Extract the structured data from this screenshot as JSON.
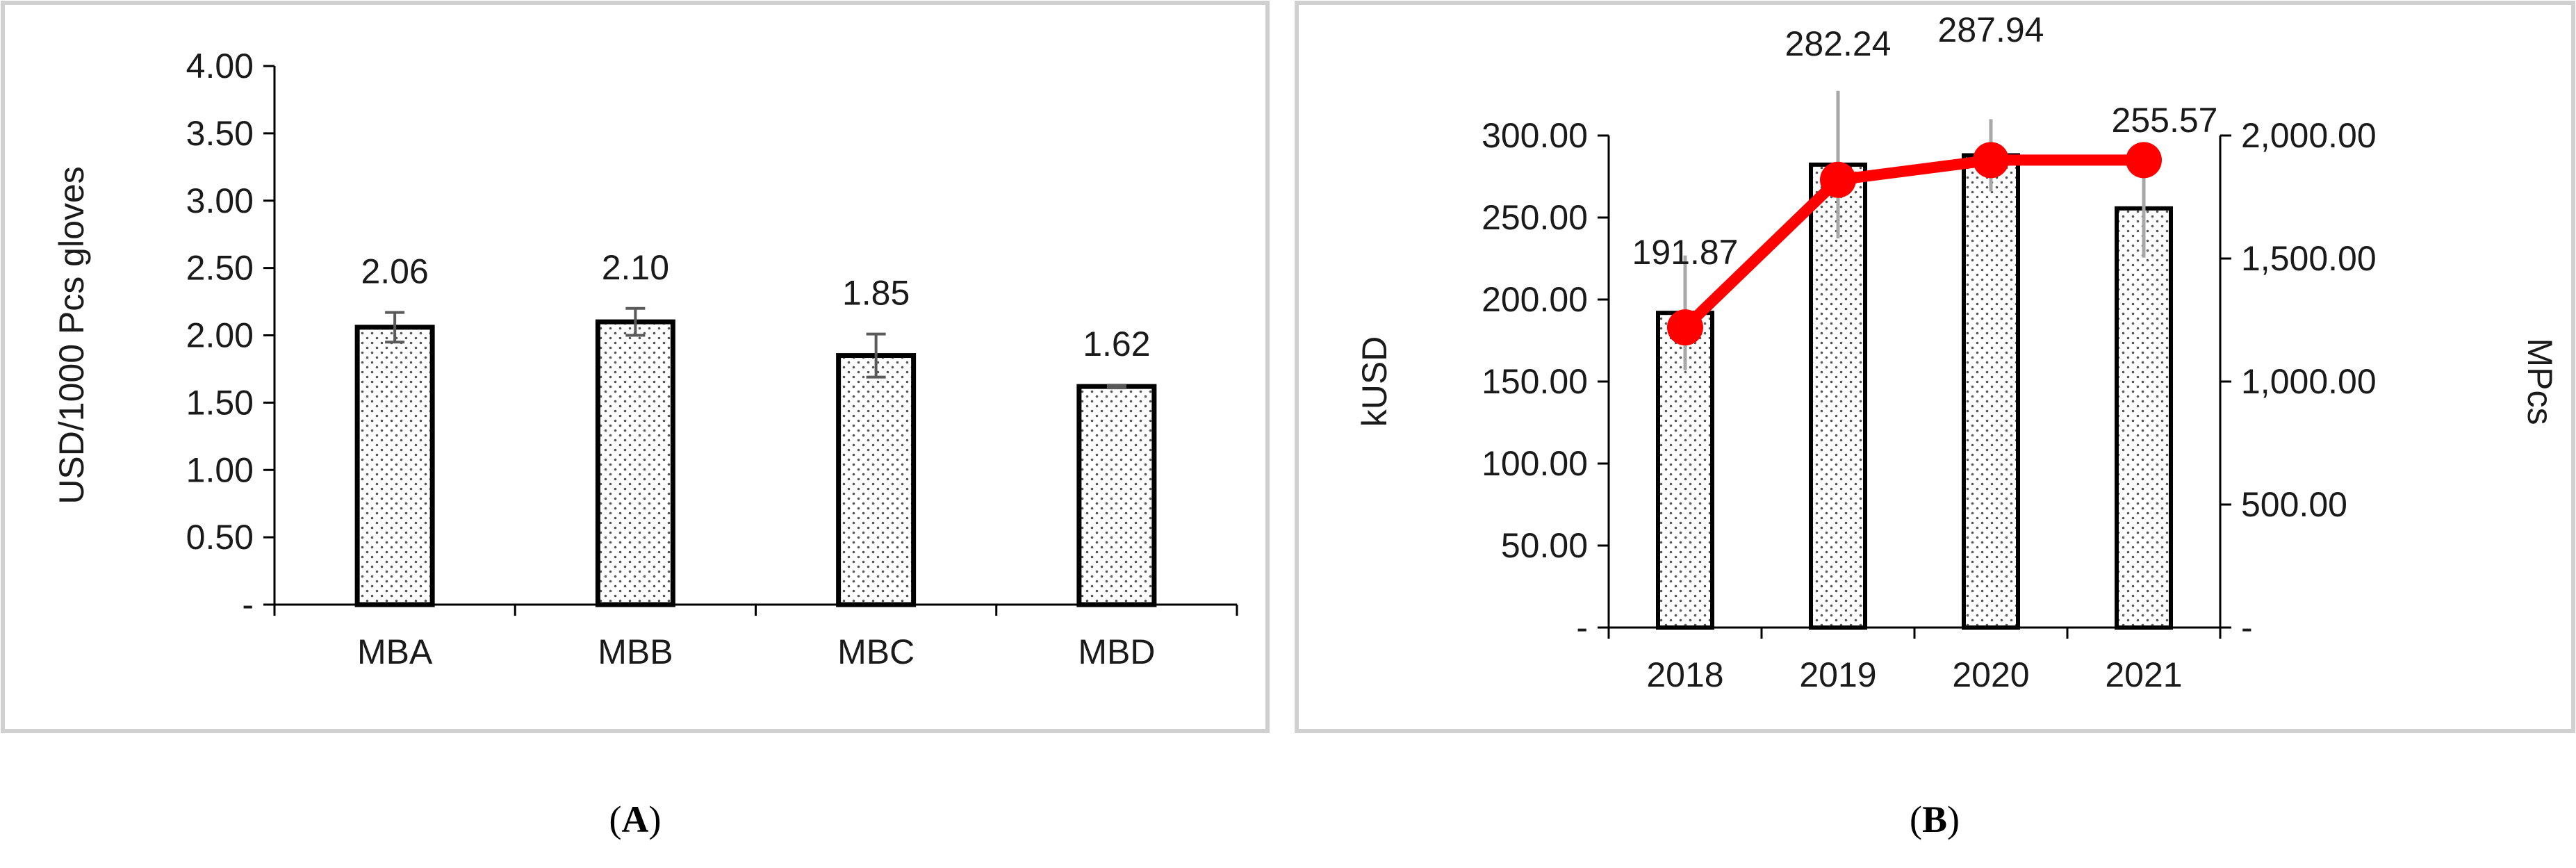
{
  "colors": {
    "frame": "#d0d0d0",
    "bar_stroke": "#000000",
    "bar_dots": "#555555",
    "error_bar_a": "#5a5a5a",
    "error_bar_b": "#a8a8a8",
    "line": "#ff0000",
    "axis": "#000000"
  },
  "panels": {
    "a": {
      "open": "(",
      "letter": "A",
      "close": ")"
    },
    "b": {
      "open": "(",
      "letter": "B",
      "close": ")"
    }
  },
  "chart_data": [
    {
      "id": "A",
      "type": "bar",
      "categories": [
        "MBA",
        "MBB",
        "MBC",
        "MBD"
      ],
      "values": [
        2.06,
        2.1,
        1.85,
        1.62
      ],
      "data_labels": [
        "2.06",
        "2.10",
        "1.85",
        "1.62"
      ],
      "error": [
        0.11,
        0.1,
        0.16,
        0.01
      ],
      "ylabel": "USD/1000 Pcs gloves",
      "ylim": [
        0,
        4.0
      ],
      "yticks": [
        0,
        0.5,
        1.0,
        1.5,
        2.0,
        2.5,
        3.0,
        3.5,
        4.0
      ],
      "ytick_labels": [
        "-",
        "0.50",
        "1.00",
        "1.50",
        "2.00",
        "2.50",
        "3.00",
        "3.50",
        "4.00"
      ],
      "grid": false
    },
    {
      "id": "B",
      "type": "bar+line",
      "categories": [
        "2018",
        "2019",
        "2020",
        "2021"
      ],
      "bars": {
        "axis": "left",
        "values": [
          191.87,
          282.24,
          287.94,
          255.57
        ],
        "data_labels": [
          "191.87",
          "282.24",
          "287.94",
          "255.57"
        ],
        "error": [
          35,
          45,
          22,
          30
        ]
      },
      "line": {
        "axis": "right",
        "values": [
          1220,
          1820,
          1900,
          1900
        ]
      },
      "ylabel_left": "kUSD",
      "ylabel_right": "MPcs",
      "ylim_left": [
        0,
        300
      ],
      "yticks_left": [
        0,
        50,
        100,
        150,
        200,
        250,
        300
      ],
      "ytick_labels_left": [
        "-",
        "50.00",
        "100.00",
        "150.00",
        "200.00",
        "250.00",
        "300.00"
      ],
      "ylim_right": [
        0,
        2000
      ],
      "yticks_right": [
        0,
        500,
        1000,
        1500,
        2000
      ],
      "ytick_labels_right": [
        "-",
        "500.00",
        "1,000.00",
        "1,500.00",
        "2,000.00"
      ],
      "grid": false
    }
  ]
}
